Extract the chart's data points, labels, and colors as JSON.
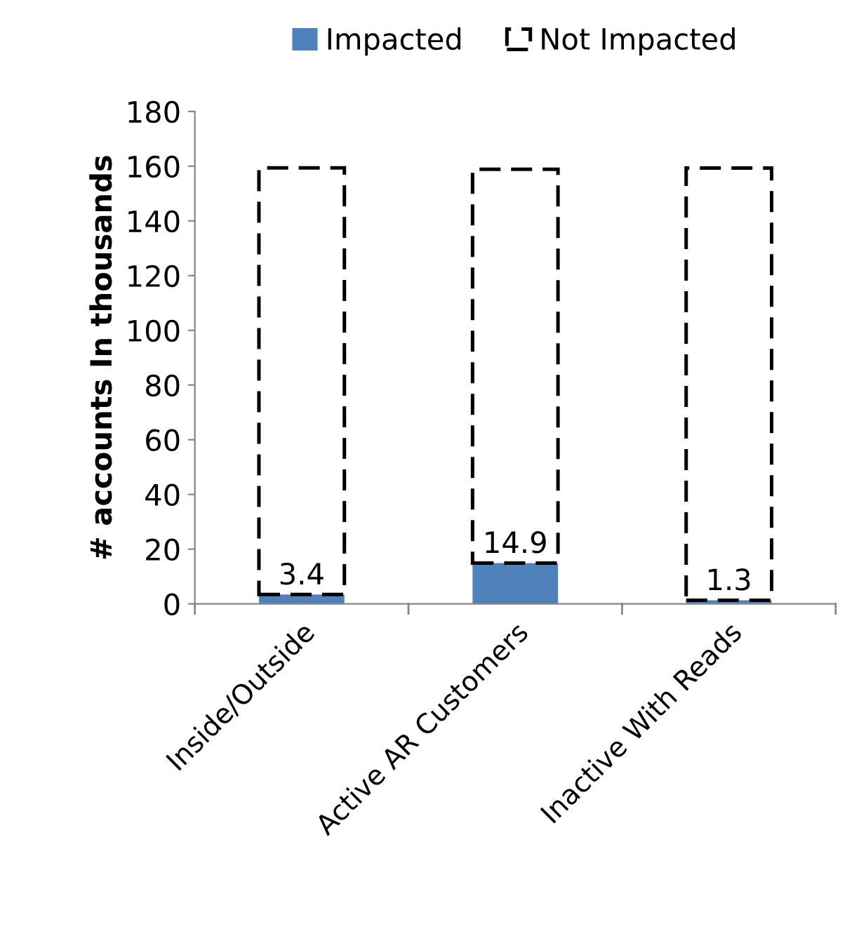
{
  "chart_data": {
    "type": "bar",
    "stacked": true,
    "ylabel": "# accounts In thousands",
    "categories": [
      "Inside/Outside",
      "Active AR Customers",
      "Inactive With Reads"
    ],
    "series": [
      {
        "name": "Impacted",
        "color": "#4f81bd",
        "values": [
          3.4,
          14.9,
          1.3
        ],
        "value_labels": [
          "3.4",
          "14.9",
          "1.3"
        ],
        "line_style": "solid"
      },
      {
        "name": "Not Impacted",
        "color": "#000000",
        "values": [
          156,
          144,
          158
        ],
        "line_style": "dashed"
      }
    ],
    "ylim": [
      0,
      180
    ],
    "yticks": [
      0,
      20,
      40,
      60,
      80,
      100,
      120,
      140,
      160,
      180
    ],
    "grid": false,
    "legend": "top"
  }
}
